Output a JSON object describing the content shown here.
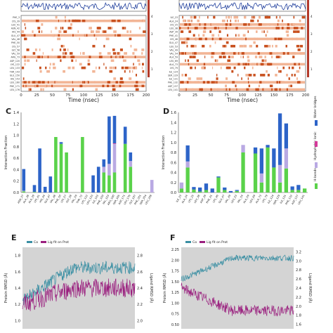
{
  "panels": {
    "top_left": {
      "xlabel": "Time (nsec)",
      "xticks": [
        "0",
        "25",
        "50",
        "75",
        "100",
        "125",
        "150",
        "175",
        "200"
      ],
      "residues": [
        "PHE_3",
        "LYS_39",
        "LEU_41",
        "ASN_42",
        "HIS_44",
        "GLU_47",
        "VAL_48",
        "PHE_50",
        "LYS_57",
        "GLY_58",
        "VAL_59",
        "ARG_73",
        "ASP_120",
        "LYS_122",
        "LEU_133",
        "THR_143",
        "GLU_150",
        "HIS_153",
        "LEU_160",
        "PHE_171",
        "LEU_176"
      ],
      "colorbar_ticks": [
        "1",
        "2",
        "3",
        "4"
      ]
    },
    "top_right": {
      "xlabel": "Time (nsec)",
      "xticks": [
        "0",
        "25",
        "50",
        "75",
        "100",
        "125",
        "150",
        "175",
        "200"
      ],
      "residues": [
        "ILE_23",
        "ALA_24",
        "LYS_25",
        "LEU_38",
        "ASP_39",
        "PHE_41",
        "LYS_46",
        "GLU_47",
        "LEU_53",
        "VAL_49",
        "VAL_54",
        "ALA_59",
        "LEU_69",
        "ALA_73",
        "LYS_79",
        "ILE_124",
        "SER_129",
        "ILE_131",
        "PHE_132",
        "ASP_137",
        "LEU_141"
      ],
      "colorbar_ticks": [
        "1",
        "2",
        "3",
        "4"
      ]
    },
    "C": {
      "label": "C",
      "ylabel": "Interaction Fraction",
      "yticks": [
        "0.0",
        "0.2",
        "0.4",
        "0.6",
        "0.8",
        "1.0",
        "1.2",
        "1.4"
      ]
    },
    "D": {
      "label": "D",
      "ylabel": "Interaction Fraction",
      "yticks": [
        "0.0",
        "0.2",
        "0.4",
        "0.6",
        "0.8",
        "1.0",
        "1.2",
        "1.4",
        "1.6"
      ],
      "legend": [
        "H-bonds",
        "Hydrophobic",
        "Ionic",
        "Water bridges"
      ]
    },
    "E": {
      "label": "E",
      "legend": [
        "Cα",
        "Lig fit on Prot"
      ],
      "ylabel_left": "Protein RMSD (Å)",
      "ylabel_right": "Ligand RMSD (Å)",
      "yticks_left": [
        "1.0",
        "1.2",
        "1.4",
        "1.6",
        "1.8"
      ],
      "yticks_right": [
        "2.0",
        "2.2",
        "2.4",
        "2.6",
        "2.8"
      ]
    },
    "F": {
      "label": "F",
      "legend": [
        "Cα",
        "Lig fit on Prot"
      ],
      "ylabel_left": "Protein RMSD (Å)",
      "ylabel_right": "Ligand RMSD (Å)",
      "yticks_left": [
        "0.50",
        "0.75",
        "1.00",
        "1.25",
        "1.50",
        "1.75",
        "2.00",
        "2.25"
      ],
      "yticks_right": [
        "1.6",
        "1.8",
        "2.0",
        "2.2",
        "2.4",
        "2.6",
        "2.8",
        "3.0",
        "3.2"
      ]
    }
  },
  "colors": {
    "hbond": "#5ad24a",
    "hydrophobic": "#b9a9e3",
    "ionic": "#d43a9a",
    "water": "#2d64c8",
    "protein_line": "#3a8fa3",
    "ligand_line": "#9a1f7e",
    "contact_dark": "#c8501e",
    "contact_light": "#f2b596",
    "rmsd_bg": "#d4d4d4"
  },
  "chart_data": [
    {
      "panel": "C",
      "type": "bar",
      "stacked": true,
      "categories": [
        "ASN_37",
        "ALA_38",
        "ALA_39",
        "LYS_41",
        "HIS_44",
        "GLU_47",
        "VAL_48",
        "PHE_50",
        "LYS_57",
        "GLY_58",
        "VAL_59",
        "THR_72",
        "LYS_122",
        "LEU_133",
        "ILE_143",
        "PHE_150",
        "VAL_153",
        "ARG_160",
        "SER_165",
        "ASP_171",
        "LEU_176",
        "GLY_197",
        "PHE_201",
        "SER_204",
        "LEU_208"
      ],
      "series": [
        {
          "name": "H-bonds",
          "values": [
            0.02,
            0,
            0.01,
            0,
            0,
            0,
            0.97,
            0.85,
            0.7,
            0,
            0,
            0.97,
            0,
            0,
            0,
            0.35,
            0.3,
            0.35,
            0,
            0.85,
            0.45,
            0,
            0,
            0,
            0
          ]
        },
        {
          "name": "Hydrophobic",
          "values": [
            0.01,
            0,
            0,
            0,
            0,
            0,
            0,
            0,
            0,
            0,
            0,
            0,
            0,
            0,
            0,
            0.1,
            0.2,
            0.5,
            0,
            0,
            0.1,
            0,
            0,
            0,
            0.22
          ]
        },
        {
          "name": "Ionic",
          "values": [
            0,
            0,
            0,
            0,
            0,
            0,
            0,
            0,
            0,
            0,
            0,
            0,
            0,
            0,
            0,
            0,
            0,
            0.01,
            0,
            0,
            0,
            0,
            0,
            0,
            0
          ]
        },
        {
          "name": "Water bridges",
          "values": [
            0.38,
            0,
            0.12,
            0.77,
            0.1,
            0.28,
            0,
            0.03,
            0,
            0,
            0,
            0,
            0,
            0.3,
            0.45,
            0.13,
            0.83,
            0.48,
            0,
            0.3,
            0.15,
            0,
            0,
            0,
            0
          ]
        }
      ],
      "ylim": [
        0,
        1.4
      ]
    },
    {
      "panel": "D",
      "type": "bar",
      "stacked": true,
      "categories": [
        "ILE_23",
        "ALA_24",
        "LYS_25",
        "LEU_38",
        "ASP_39",
        "PHE_41",
        "LYS_46",
        "GLU_47",
        "VAL_49",
        "LEU_53",
        "VAL_54",
        "ALA_59",
        "LEU_69",
        "ALA_73",
        "LYS_79",
        "ILE_124",
        "SER_129",
        "ILE_131",
        "PHE_132",
        "ASP_137",
        "LEU_141"
      ],
      "series": [
        {
          "name": "H-bonds",
          "values": [
            0.08,
            0.5,
            0.06,
            0.02,
            0.05,
            0,
            0.3,
            0.05,
            0,
            0.03,
            0.8,
            0,
            0.78,
            0.2,
            0.9,
            0.5,
            0.2,
            0.48,
            0.05,
            0.05,
            0.08
          ]
        },
        {
          "name": "Hydrophobic",
          "values": [
            0.12,
            0.12,
            0,
            0,
            0,
            0,
            0,
            0,
            0,
            0,
            0.15,
            0,
            0,
            0.18,
            0,
            0,
            0.35,
            0.4,
            0,
            0,
            0
          ]
        },
        {
          "name": "Ionic",
          "values": [
            0,
            0,
            0,
            0,
            0,
            0,
            0,
            0,
            0,
            0,
            0,
            0,
            0,
            0,
            0,
            0,
            0,
            0,
            0,
            0,
            0
          ]
        },
        {
          "name": "Water bridges",
          "values": [
            0,
            0.32,
            0.05,
            0.08,
            0.13,
            0.08,
            0.02,
            0.05,
            0.03,
            0.02,
            0,
            0,
            0.12,
            0.5,
            0.05,
            0.38,
            1.03,
            0.5,
            0.07,
            0.1,
            0
          ]
        }
      ],
      "ylim": [
        0,
        1.6
      ]
    },
    {
      "panel": "E",
      "type": "line",
      "x_range": [
        0,
        200
      ],
      "series": [
        {
          "name": "Cα",
          "axis": "left",
          "mean": 1.55,
          "trend": [
            1.25,
            1.65
          ],
          "noise": 0.08
        },
        {
          "name": "Lig fit on Prot",
          "axis": "right",
          "mean": 2.3,
          "trend": [
            2.2,
            2.4
          ],
          "noise": 0.12
        }
      ],
      "ylim_left": [
        0.9,
        1.9
      ],
      "ylim_right": [
        1.9,
        2.9
      ]
    },
    {
      "panel": "F",
      "type": "line",
      "x_range": [
        0,
        200
      ],
      "series": [
        {
          "name": "Cα",
          "axis": "left",
          "mean": 1.9,
          "trend": [
            1.55,
            2.05
          ],
          "noise": 0.07
        },
        {
          "name": "Lig fit on Prot",
          "axis": "right",
          "mean": 2.0,
          "trend": [
            2.4,
            1.9
          ],
          "noise": 0.12
        }
      ],
      "ylim_left": [
        0.4,
        2.3
      ],
      "ylim_right": [
        1.5,
        3.3
      ]
    }
  ]
}
